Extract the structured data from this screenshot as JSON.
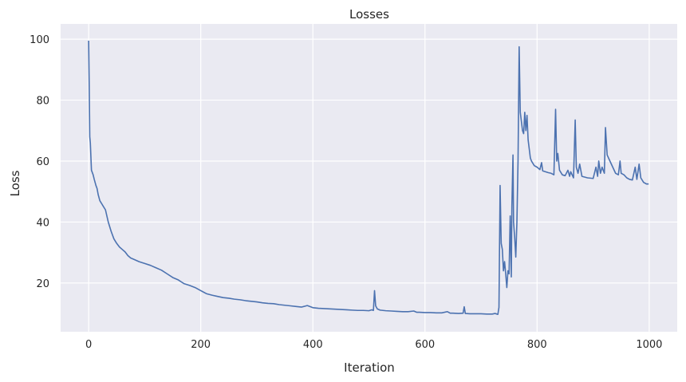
{
  "chart_data": {
    "type": "line",
    "title": "Losses",
    "xlabel": "Iteration",
    "ylabel": "Loss",
    "xlim": [
      -50,
      1050
    ],
    "ylim": [
      4,
      105
    ],
    "xticks": [
      0,
      200,
      400,
      600,
      800,
      1000
    ],
    "yticks": [
      20,
      40,
      60,
      80,
      100
    ],
    "grid": true,
    "colors": {
      "background": "#eaeaf2",
      "grid": "#ffffff",
      "line": "#4c72b0"
    },
    "series": [
      {
        "points": [
          [
            0,
            99.5
          ],
          [
            1,
            85
          ],
          [
            2,
            68
          ],
          [
            3,
            66
          ],
          [
            5,
            57
          ],
          [
            8,
            55.5
          ],
          [
            10,
            54
          ],
          [
            13,
            52
          ],
          [
            15,
            51
          ],
          [
            17,
            49
          ],
          [
            20,
            47
          ],
          [
            25,
            45.5
          ],
          [
            30,
            44
          ],
          [
            35,
            40
          ],
          [
            40,
            37
          ],
          [
            45,
            34.5
          ],
          [
            50,
            33
          ],
          [
            55,
            31.8
          ],
          [
            60,
            31
          ],
          [
            65,
            30.2
          ],
          [
            70,
            29
          ],
          [
            75,
            28.2
          ],
          [
            80,
            27.8
          ],
          [
            90,
            27
          ],
          [
            100,
            26.4
          ],
          [
            110,
            25.8
          ],
          [
            120,
            25
          ],
          [
            130,
            24.2
          ],
          [
            140,
            23
          ],
          [
            150,
            21.8
          ],
          [
            160,
            21
          ],
          [
            170,
            19.8
          ],
          [
            180,
            19.2
          ],
          [
            190,
            18.5
          ],
          [
            200,
            17.5
          ],
          [
            210,
            16.5
          ],
          [
            220,
            16
          ],
          [
            230,
            15.6
          ],
          [
            240,
            15.2
          ],
          [
            250,
            15
          ],
          [
            260,
            14.7
          ],
          [
            270,
            14.5
          ],
          [
            280,
            14.2
          ],
          [
            290,
            14
          ],
          [
            300,
            13.8
          ],
          [
            310,
            13.5
          ],
          [
            320,
            13.3
          ],
          [
            330,
            13.2
          ],
          [
            340,
            12.9
          ],
          [
            350,
            12.7
          ],
          [
            360,
            12.5
          ],
          [
            370,
            12.3
          ],
          [
            380,
            12.1
          ],
          [
            390,
            12.6
          ],
          [
            400,
            11.9
          ],
          [
            410,
            11.7
          ],
          [
            420,
            11.6
          ],
          [
            430,
            11.5
          ],
          [
            440,
            11.4
          ],
          [
            450,
            11.3
          ],
          [
            460,
            11.2
          ],
          [
            470,
            11.1
          ],
          [
            480,
            11
          ],
          [
            490,
            11
          ],
          [
            500,
            10.9
          ],
          [
            505,
            11.2
          ],
          [
            508,
            11
          ],
          [
            510,
            17.5
          ],
          [
            512,
            12.5
          ],
          [
            515,
            11.5
          ],
          [
            520,
            11.1
          ],
          [
            530,
            10.9
          ],
          [
            540,
            10.8
          ],
          [
            550,
            10.7
          ],
          [
            560,
            10.6
          ],
          [
            570,
            10.6
          ],
          [
            580,
            10.8
          ],
          [
            585,
            10.4
          ],
          [
            590,
            10.4
          ],
          [
            600,
            10.3
          ],
          [
            610,
            10.3
          ],
          [
            620,
            10.2
          ],
          [
            630,
            10.2
          ],
          [
            640,
            10.6
          ],
          [
            645,
            10.1
          ],
          [
            650,
            10.1
          ],
          [
            660,
            10
          ],
          [
            668,
            10.1
          ],
          [
            670,
            12.2
          ],
          [
            672,
            10
          ],
          [
            680,
            9.9
          ],
          [
            690,
            9.9
          ],
          [
            700,
            9.9
          ],
          [
            710,
            9.8
          ],
          [
            720,
            9.8
          ],
          [
            725,
            10
          ],
          [
            730,
            9.7
          ],
          [
            732,
            12
          ],
          [
            734,
            52
          ],
          [
            736,
            33
          ],
          [
            738,
            31
          ],
          [
            740,
            24
          ],
          [
            742,
            27
          ],
          [
            744,
            23
          ],
          [
            746,
            18.5
          ],
          [
            748,
            24
          ],
          [
            750,
            23
          ],
          [
            752,
            42
          ],
          [
            754,
            22
          ],
          [
            755,
            45
          ],
          [
            757,
            62
          ],
          [
            758,
            40
          ],
          [
            760,
            35
          ],
          [
            762,
            28.5
          ],
          [
            764,
            40
          ],
          [
            766,
            60
          ],
          [
            768,
            97.5
          ],
          [
            770,
            76
          ],
          [
            772,
            73
          ],
          [
            774,
            70
          ],
          [
            776,
            69
          ],
          [
            778,
            76
          ],
          [
            780,
            70
          ],
          [
            782,
            75
          ],
          [
            784,
            67
          ],
          [
            786,
            64
          ],
          [
            788,
            61
          ],
          [
            790,
            60
          ],
          [
            795,
            58.5
          ],
          [
            800,
            58
          ],
          [
            805,
            57.2
          ],
          [
            808,
            59.5
          ],
          [
            810,
            56.8
          ],
          [
            815,
            56.5
          ],
          [
            820,
            56.2
          ],
          [
            825,
            56
          ],
          [
            830,
            55.5
          ],
          [
            833,
            77
          ],
          [
            835,
            60
          ],
          [
            837,
            62.5
          ],
          [
            840,
            57
          ],
          [
            845,
            55.5
          ],
          [
            850,
            55.2
          ],
          [
            855,
            57
          ],
          [
            858,
            55
          ],
          [
            860,
            56.5
          ],
          [
            865,
            54.5
          ],
          [
            868,
            73.5
          ],
          [
            870,
            58
          ],
          [
            873,
            56
          ],
          [
            876,
            59
          ],
          [
            880,
            55
          ],
          [
            890,
            54.5
          ],
          [
            900,
            54.3
          ],
          [
            903,
            56.5
          ],
          [
            905,
            58
          ],
          [
            908,
            55
          ],
          [
            910,
            60
          ],
          [
            913,
            56
          ],
          [
            916,
            58
          ],
          [
            920,
            56
          ],
          [
            922,
            71
          ],
          [
            925,
            62
          ],
          [
            930,
            60
          ],
          [
            935,
            58
          ],
          [
            940,
            56
          ],
          [
            945,
            55.5
          ],
          [
            948,
            60
          ],
          [
            950,
            56
          ],
          [
            955,
            55.5
          ],
          [
            960,
            54.5
          ],
          [
            965,
            54
          ],
          [
            970,
            53.8
          ],
          [
            975,
            58
          ],
          [
            978,
            54
          ],
          [
            982,
            59
          ],
          [
            985,
            54.5
          ],
          [
            990,
            53
          ],
          [
            995,
            52.5
          ],
          [
            999,
            52.5
          ]
        ]
      }
    ]
  }
}
